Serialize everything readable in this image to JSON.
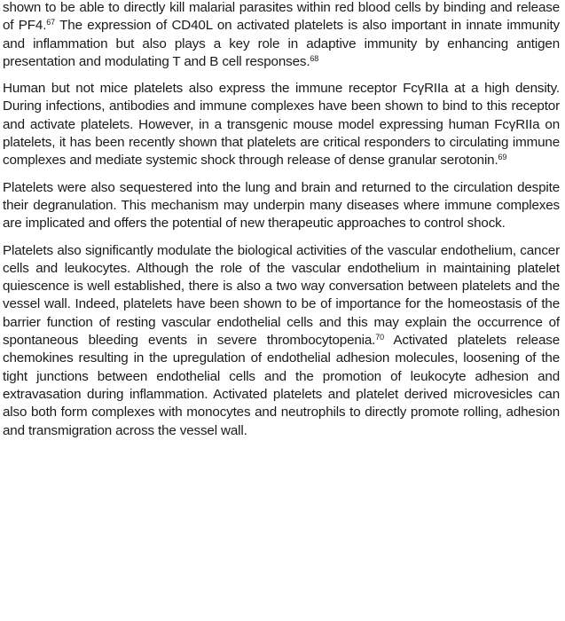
{
  "document": {
    "paragraphs": [
      {
        "segments": [
          {
            "text": "shown to be able to directly kill malarial parasites within red blood cells by binding and release of PF4."
          },
          {
            "sup": "67"
          },
          {
            "text": " The expression of CD40L on activated platelets is also important in innate immunity and inflammation but also plays a key role in adaptive immunity by enhancing antigen presentation and modulating T and B cell responses."
          },
          {
            "sup": "68"
          }
        ]
      },
      {
        "segments": [
          {
            "text": "Human but not mice platelets also express the immune receptor FcγRIIa at a high density. During infections, antibodies and immune complexes have been shown to bind to this receptor and activate platelets. However, in a transgenic mouse model expressing human FcγRIIa on platelets, it has been recently shown that platelets are critical responders to circulating immune complexes and mediate systemic shock through release of dense granular serotonin."
          },
          {
            "sup": "69"
          }
        ]
      },
      {
        "segments": [
          {
            "text": "Platelets were also sequestered into the lung and brain and returned to the circulation despite their degranulation. This mechanism may underpin many diseases where immune complexes are implicated and offers the potential of new therapeutic approaches to control shock."
          }
        ]
      },
      {
        "segments": [
          {
            "text": "Platelets also significantly modulate the biological activities of the vascular endothelium, cancer cells and leukocytes. Although the role of the vascular endothelium in maintaining platelet quiescence is well established, there is also a two way conversation between platelets and the vessel wall. Indeed, platelets have been shown to be of importance for the homeostasis of the barrier function of resting vascular endothelial cells and this may explain the occurrence of spontaneous bleeding events in severe thrombocytopenia."
          },
          {
            "sup": "70"
          },
          {
            "text": " Activated platelets release chemokines resulting in the upregulation of endothelial adhesion molecules, loosening of the tight junctions between endothelial cells and the promotion of leukocyte adhesion and extravasation during inflammation. Activated platelets and platelet derived microvesicles can also both form complexes with monocytes and neutrophils to directly promote rolling, adhesion and transmigration across the vessel wall."
          }
        ]
      }
    ]
  }
}
